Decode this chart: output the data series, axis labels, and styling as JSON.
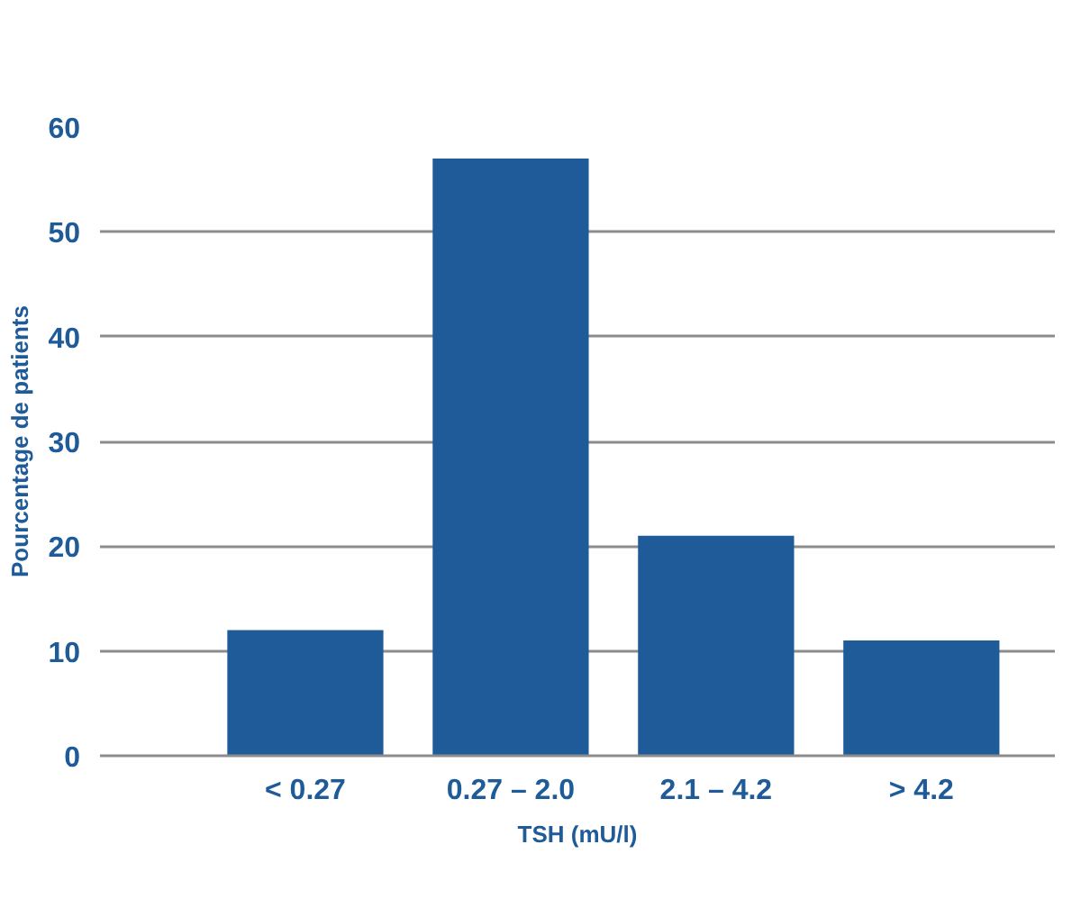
{
  "chart_data": {
    "type": "bar",
    "xlabel": "TSH (mU/l)",
    "ylabel": "Pourcentage de patients",
    "categories": [
      "< 0.27",
      "0.27 – 2.0",
      "2.1 – 4.2",
      "> 4.2"
    ],
    "values": [
      12,
      57,
      21,
      11
    ],
    "color": "#1e5b98",
    "ylim": [
      0,
      60
    ],
    "yticks": [
      0,
      10,
      20,
      30,
      40,
      50,
      60
    ],
    "grid": "y"
  }
}
